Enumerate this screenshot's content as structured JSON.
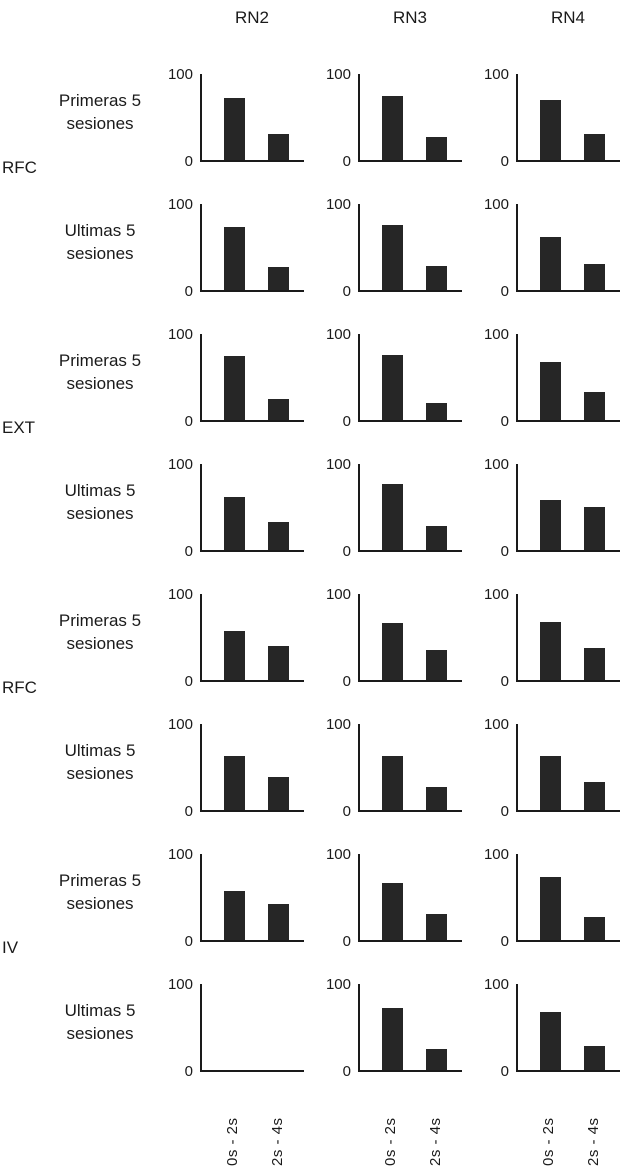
{
  "chart_data": {
    "type": "bar",
    "columns": [
      "RN2",
      "RN3",
      "RN4"
    ],
    "categories": [
      "0s - 2s",
      "2s - 4s"
    ],
    "ylim": [
      0,
      100
    ],
    "y_tick_labels": [
      "0",
      "100"
    ],
    "grid": false,
    "legend": false,
    "bar_color": "#262626",
    "axis_color": "#1a1a1a",
    "groups": [
      {
        "phase": "RFC",
        "rows": [
          {
            "session": "Primeras 5 sesiones",
            "label_lines": [
              "Primeras 5",
              "sesiones"
            ],
            "values": [
              [
                72,
                30
              ],
              [
                75,
                27
              ],
              [
                70,
                30
              ]
            ]
          },
          {
            "session": "Ultimas 5 sesiones",
            "label_lines": [
              "Ultimas 5",
              "sesiones"
            ],
            "values": [
              [
                73,
                27
              ],
              [
                76,
                28
              ],
              [
                62,
                30
              ]
            ]
          }
        ]
      },
      {
        "phase": "EXT",
        "rows": [
          {
            "session": "Primeras 5 sesiones",
            "label_lines": [
              "Primeras 5",
              "sesiones"
            ],
            "values": [
              [
                75,
                25
              ],
              [
                76,
                20
              ],
              [
                68,
                33
              ]
            ]
          },
          {
            "session": "Ultimas 5 sesiones",
            "label_lines": [
              "Ultimas 5",
              "sesiones"
            ],
            "values": [
              [
                62,
                33
              ],
              [
                77,
                28
              ],
              [
                58,
                50
              ]
            ]
          }
        ]
      },
      {
        "phase": "RFC",
        "rows": [
          {
            "session": "Primeras 5 sesiones",
            "label_lines": [
              "Primeras 5",
              "sesiones"
            ],
            "values": [
              [
                57,
                40
              ],
              [
                66,
                35
              ],
              [
                67,
                37
              ]
            ]
          },
          {
            "session": "Ultimas 5 sesiones",
            "label_lines": [
              "Ultimas 5",
              "sesiones"
            ],
            "values": [
              [
                63,
                38
              ],
              [
                63,
                27
              ],
              [
                63,
                32
              ]
            ]
          }
        ]
      },
      {
        "phase": "IV",
        "rows": [
          {
            "session": "Primeras 5 sesiones",
            "label_lines": [
              "Primeras 5",
              "sesiones"
            ],
            "values": [
              [
                57,
                42
              ],
              [
                66,
                30
              ],
              [
                73,
                27
              ]
            ]
          },
          {
            "session": "Ultimas 5 sesiones",
            "label_lines": [
              "Ultimas 5",
              "sesiones"
            ],
            "values": [
              [
                null,
                null
              ],
              [
                72,
                25
              ],
              [
                68,
                28
              ]
            ]
          }
        ]
      }
    ]
  }
}
